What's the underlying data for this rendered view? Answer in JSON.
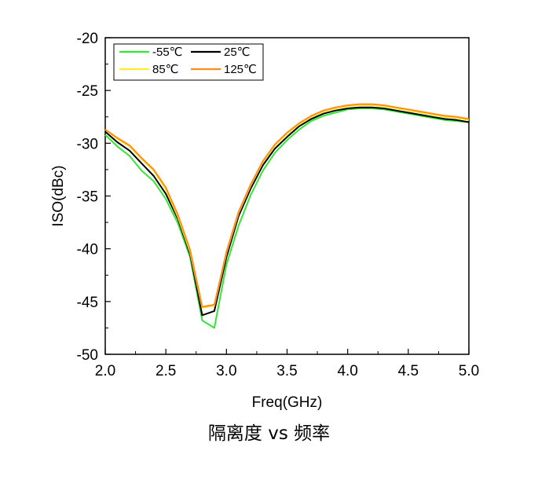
{
  "caption": "隔离度 vs 频率",
  "chart_data": {
    "type": "line",
    "xlabel": "Freq(GHz)",
    "ylabel": "ISO(dBc)",
    "xlim": [
      2.0,
      5.0
    ],
    "ylim": [
      -50,
      -20
    ],
    "xticks": [
      "2.0",
      "2.5",
      "3.0",
      "3.5",
      "4.0",
      "4.5",
      "5.0"
    ],
    "yticks": [
      "-20",
      "-25",
      "-30",
      "-35",
      "-40",
      "-45",
      "-50"
    ],
    "grid": false,
    "legend_position": "top-left",
    "x": [
      2.0,
      2.1,
      2.2,
      2.3,
      2.4,
      2.5,
      2.6,
      2.7,
      2.8,
      2.9,
      3.0,
      3.1,
      3.2,
      3.3,
      3.4,
      3.5,
      3.6,
      3.7,
      3.8,
      3.9,
      4.0,
      4.1,
      4.2,
      4.3,
      4.4,
      4.5,
      4.6,
      4.7,
      4.8,
      4.9,
      5.0
    ],
    "series": [
      {
        "name": "-55℃",
        "color": "#33e633",
        "values": [
          -29.2,
          -30.3,
          -31.2,
          -32.6,
          -33.6,
          -35.3,
          -37.6,
          -40.8,
          -46.8,
          -47.5,
          -41.5,
          -37.8,
          -34.9,
          -32.6,
          -30.9,
          -29.7,
          -28.7,
          -27.9,
          -27.4,
          -27.1,
          -26.8,
          -26.7,
          -26.7,
          -26.8,
          -27.0,
          -27.2,
          -27.4,
          -27.6,
          -27.8,
          -27.9,
          -28.0
        ]
      },
      {
        "name": "25℃",
        "color": "#000000",
        "values": [
          -28.9,
          -29.9,
          -30.7,
          -31.9,
          -33.1,
          -34.8,
          -37.2,
          -40.5,
          -46.3,
          -45.9,
          -40.8,
          -36.9,
          -34.3,
          -32.1,
          -30.5,
          -29.4,
          -28.4,
          -27.7,
          -27.2,
          -26.9,
          -26.7,
          -26.6,
          -26.6,
          -26.7,
          -26.9,
          -27.1,
          -27.3,
          -27.5,
          -27.7,
          -27.8,
          -28.0
        ]
      },
      {
        "name": "85℃",
        "color": "#ffea2e",
        "values": [
          -28.7,
          -29.6,
          -30.3,
          -31.5,
          -32.6,
          -34.4,
          -37.0,
          -40.3,
          -45.6,
          -45.4,
          -40.4,
          -36.6,
          -34.0,
          -31.8,
          -30.2,
          -29.1,
          -28.2,
          -27.5,
          -27.0,
          -26.7,
          -26.5,
          -26.4,
          -26.4,
          -26.5,
          -26.7,
          -26.9,
          -27.1,
          -27.3,
          -27.5,
          -27.6,
          -27.8
        ]
      },
      {
        "name": "125℃",
        "color": "#ff8c1a",
        "values": [
          -28.7,
          -29.5,
          -30.2,
          -31.4,
          -32.5,
          -34.2,
          -36.8,
          -40.1,
          -45.5,
          -45.3,
          -40.3,
          -36.5,
          -33.9,
          -31.7,
          -30.1,
          -29.0,
          -28.1,
          -27.4,
          -26.9,
          -26.6,
          -26.4,
          -26.3,
          -26.3,
          -26.4,
          -26.6,
          -26.8,
          -27.0,
          -27.2,
          -27.4,
          -27.5,
          -27.7
        ]
      }
    ]
  }
}
